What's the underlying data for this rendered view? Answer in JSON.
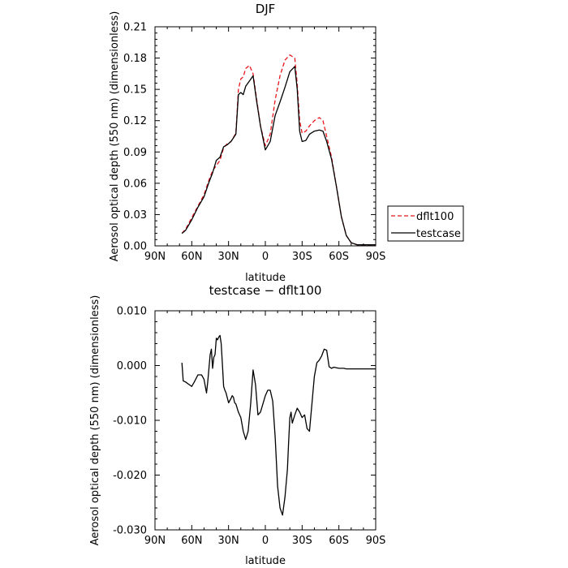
{
  "chart_data": [
    {
      "type": "line",
      "title": "DJF",
      "xlabel": "latitude",
      "ylabel": "Aerosol optical depth (550 nm) (dimensionless)",
      "xlim": [
        90,
        -90
      ],
      "ylim": [
        0,
        0.21
      ],
      "x_ticks": [
        90,
        60,
        30,
        0,
        -30,
        -60,
        -90
      ],
      "x_tick_labels": [
        "90N",
        "60N",
        "30N",
        "0",
        "30S",
        "60S",
        "90S"
      ],
      "y_ticks": [
        0,
        0.03,
        0.06,
        0.09,
        0.12,
        0.15,
        0.18,
        0.21
      ],
      "y_tick_labels": [
        "0.00",
        "0.03",
        "0.06",
        "0.09",
        "0.12",
        "0.15",
        "0.18",
        "0.21"
      ],
      "legend": "outside-right",
      "series": [
        {
          "name": "dflt100",
          "color": "#e8161c",
          "dash": "dashed",
          "x": [
            68,
            65,
            60,
            55,
            50,
            46,
            43,
            40,
            37,
            34,
            31,
            28,
            24,
            22,
            20,
            18,
            16,
            13,
            10,
            7,
            4,
            0,
            -4,
            -8,
            -12,
            -16,
            -20,
            -24,
            -26,
            -28,
            -30,
            -33,
            -36,
            -40,
            -44,
            -47,
            -50,
            -54,
            -58,
            -62,
            -66,
            -70,
            -75,
            -80,
            -85,
            -90
          ],
          "y": [
            0.012,
            0.016,
            0.027,
            0.038,
            0.049,
            0.063,
            0.072,
            0.077,
            0.082,
            0.094,
            0.098,
            0.1,
            0.108,
            0.15,
            0.16,
            0.162,
            0.17,
            0.173,
            0.165,
            0.14,
            0.115,
            0.096,
            0.107,
            0.14,
            0.163,
            0.178,
            0.183,
            0.18,
            0.155,
            0.12,
            0.108,
            0.11,
            0.115,
            0.12,
            0.123,
            0.12,
            0.105,
            0.085,
            0.057,
            0.028,
            0.01,
            0.003,
            0.001,
            0.001,
            0.001,
            0.001
          ]
        },
        {
          "name": "testcase",
          "color": "#000000",
          "dash": "solid",
          "x": [
            68,
            65,
            60,
            55,
            50,
            46,
            43,
            40,
            37,
            34,
            31,
            28,
            24,
            22,
            20,
            18,
            16,
            13,
            10,
            7,
            4,
            0,
            -4,
            -8,
            -12,
            -16,
            -20,
            -24,
            -26,
            -28,
            -30,
            -33,
            -36,
            -40,
            -44,
            -47,
            -50,
            -54,
            -58,
            -62,
            -66,
            -70,
            -75,
            -80,
            -85,
            -90
          ],
          "y": [
            0.012,
            0.015,
            0.025,
            0.037,
            0.047,
            0.061,
            0.07,
            0.082,
            0.085,
            0.095,
            0.097,
            0.1,
            0.107,
            0.145,
            0.147,
            0.145,
            0.153,
            0.158,
            0.163,
            0.138,
            0.115,
            0.092,
            0.1,
            0.125,
            0.138,
            0.152,
            0.167,
            0.172,
            0.15,
            0.11,
            0.1,
            0.101,
            0.107,
            0.11,
            0.111,
            0.11,
            0.1,
            0.083,
            0.057,
            0.028,
            0.01,
            0.003,
            0.001,
            0.001,
            0.001,
            0.001
          ]
        }
      ]
    },
    {
      "type": "line",
      "title": "testcase − dflt100",
      "xlabel": "latitude",
      "ylabel": "Aerosol optical depth (550 nm) (dimensionless)",
      "xlim": [
        90,
        -90
      ],
      "ylim": [
        -0.03,
        0.01
      ],
      "x_ticks": [
        90,
        60,
        30,
        0,
        -30,
        -60,
        -90
      ],
      "x_tick_labels": [
        "90N",
        "60N",
        "30N",
        "0",
        "30S",
        "60S",
        "90S"
      ],
      "y_ticks": [
        0.01,
        0,
        -0.01,
        -0.02,
        -0.03
      ],
      "y_tick_labels": [
        "0.010",
        "0.000",
        "-0.010",
        "-0.020",
        "-0.030"
      ],
      "series": [
        {
          "color": "#000000",
          "dash": "solid",
          "x": [
            68,
            67,
            65,
            62,
            60,
            58,
            55,
            52,
            50,
            48,
            47,
            45,
            44,
            43,
            42,
            41,
            40,
            39,
            38,
            37,
            36,
            35,
            34,
            33,
            32,
            30,
            28,
            27,
            26,
            25,
            24,
            22,
            20,
            18,
            16,
            14,
            12,
            10,
            8,
            6,
            4,
            2,
            0,
            -2,
            -4,
            -6,
            -8,
            -10,
            -12,
            -14,
            -16,
            -18,
            -19,
            -20,
            -21,
            -22,
            -24,
            -26,
            -28,
            -30,
            -32,
            -34,
            -36,
            -38,
            -40,
            -42,
            -44,
            -46,
            -48,
            -50,
            -52,
            -54,
            -56,
            -58,
            -60,
            -62,
            -64,
            -66,
            -70,
            -75,
            -80,
            -85,
            -90
          ],
          "y": [
            0.0005,
            -0.0028,
            -0.003,
            -0.0035,
            -0.0038,
            -0.003,
            -0.0017,
            -0.0017,
            -0.0025,
            -0.005,
            -0.003,
            0.002,
            0.003,
            -0.0005,
            0.0015,
            0.002,
            0.005,
            0.0047,
            0.0052,
            0.0055,
            0.004,
            0.0002,
            -0.0038,
            -0.0045,
            -0.005,
            -0.0068,
            -0.006,
            -0.0055,
            -0.0058,
            -0.0068,
            -0.007,
            -0.0085,
            -0.0095,
            -0.012,
            -0.0135,
            -0.012,
            -0.007,
            -0.0008,
            -0.0035,
            -0.009,
            -0.0085,
            -0.007,
            -0.0055,
            -0.0045,
            -0.0045,
            -0.0065,
            -0.013,
            -0.022,
            -0.026,
            -0.0273,
            -0.024,
            -0.019,
            -0.014,
            -0.0095,
            -0.0085,
            -0.0105,
            -0.009,
            -0.0078,
            -0.0085,
            -0.0095,
            -0.009,
            -0.0115,
            -0.012,
            -0.007,
            -0.002,
            0.0005,
            0.001,
            0.0018,
            0.003,
            0.0028,
            -0.0002,
            -0.0005,
            -0.0003,
            -0.0004,
            -0.0005,
            -0.0005,
            -0.0005,
            -0.0006,
            -0.0006,
            -0.0006,
            -0.0006,
            -0.0006,
            -0.0006
          ]
        }
      ]
    }
  ]
}
